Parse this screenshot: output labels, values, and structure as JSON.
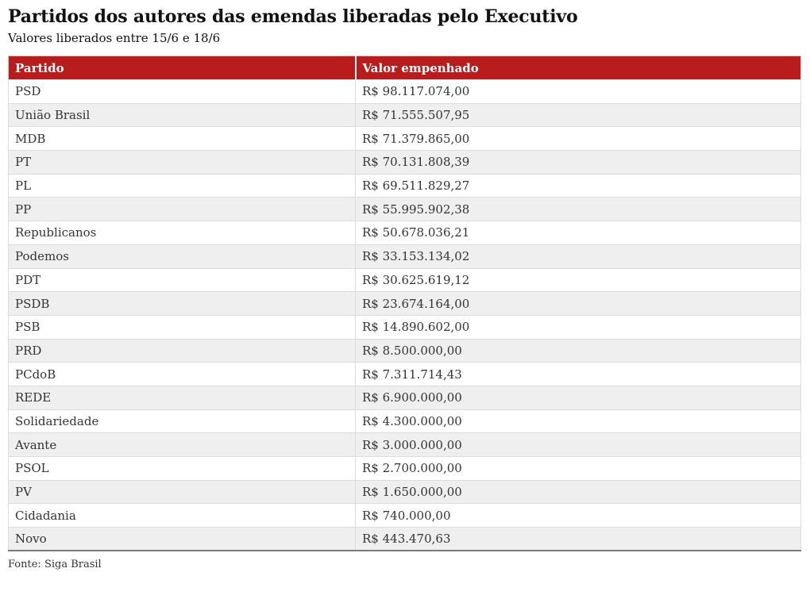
{
  "page": {
    "title": "Partidos dos autores das emendas liberadas pelo Executivo",
    "subtitle": "Valores liberados entre 15/6 e 18/6",
    "source": "Fonte: Siga Brasil"
  },
  "colors": {
    "header_background": "#b91c1c",
    "header_text": "#ffffff",
    "row_alternate": "#efefef",
    "cell_border": "#dcdcdc",
    "table_bottom_border": "#7a7a7a",
    "body_text": "#333333",
    "title_text": "#121212"
  },
  "chart_data": {
    "type": "table",
    "title": "Partidos dos autores das emendas liberadas pelo Executivo",
    "subtitle": "Valores liberados entre 15/6 e 18/6",
    "source": "Fonte: Siga Brasil",
    "columns": [
      "Partido",
      "Valor empenhado"
    ],
    "rows": [
      [
        "PSD",
        "R$ 98.117.074,00"
      ],
      [
        "União Brasil",
        "R$ 71.555.507,95"
      ],
      [
        "MDB",
        "R$ 71.379.865,00"
      ],
      [
        "PT",
        "R$ 70.131.808,39"
      ],
      [
        "PL",
        "R$ 69.511.829,27"
      ],
      [
        "PP",
        "R$ 55.995.902,38"
      ],
      [
        "Republicanos",
        "R$ 50.678.036,21"
      ],
      [
        "Podemos",
        "R$ 33.153.134,02"
      ],
      [
        "PDT",
        "R$ 30.625.619,12"
      ],
      [
        "PSDB",
        "R$ 23.674.164,00"
      ],
      [
        "PSB",
        "R$ 14.890.602,00"
      ],
      [
        "PRD",
        "R$ 8.500.000,00"
      ],
      [
        "PCdoB",
        "R$ 7.311.714,43"
      ],
      [
        "REDE",
        "R$ 6.900.000,00"
      ],
      [
        "Solidariedade",
        "R$ 4.300.000,00"
      ],
      [
        "Avante",
        "R$ 3.000.000,00"
      ],
      [
        "PSOL",
        "R$ 2.700.000,00"
      ],
      [
        "PV",
        "R$ 1.650.000,00"
      ],
      [
        "Cidadania",
        "R$ 740.000,00"
      ],
      [
        "Novo",
        "R$ 443.470,63"
      ]
    ]
  }
}
